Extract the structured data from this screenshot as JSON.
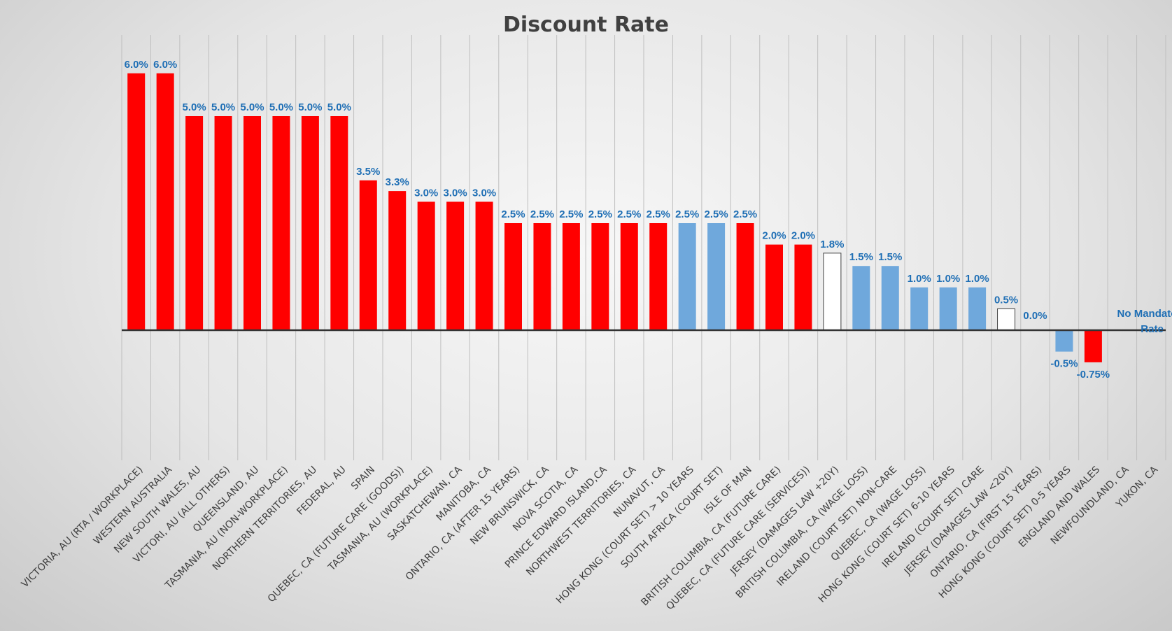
{
  "chart_data": {
    "type": "bar",
    "title": "Discount Rate",
    "xlabel": "",
    "ylabel": "",
    "ylim": [
      -2.75,
      6.5
    ],
    "grid": "vertical category lines",
    "legend": "none",
    "colors": {
      "red": "#ff0000",
      "blue": "#6fa8dc",
      "white": "#ffffff",
      "label": "#1f6fb5"
    },
    "note": "No Mandatory Rate",
    "bars": [
      {
        "category": "VICTORIA, AU (RTA / WORKPLACE)",
        "value": 6.0,
        "label": "6.0%",
        "color": "red"
      },
      {
        "category": "WESTERN AUSTRALIA",
        "value": 6.0,
        "label": "6.0%",
        "color": "red"
      },
      {
        "category": "NEW SOUTH WALES, AU",
        "value": 5.0,
        "label": "5.0%",
        "color": "red"
      },
      {
        "category": "VICTORI, AU (ALL OTHERS)",
        "value": 5.0,
        "label": "5.0%",
        "color": "red"
      },
      {
        "category": "QUEENSLAND, AU",
        "value": 5.0,
        "label": "5.0%",
        "color": "red"
      },
      {
        "category": "TASMANIA, AU (NON-WORKPLACE)",
        "value": 5.0,
        "label": "5.0%",
        "color": "red"
      },
      {
        "category": "NORTHERN TERRITORIES, AU",
        "value": 5.0,
        "label": "5.0%",
        "color": "red"
      },
      {
        "category": "FEDERAL, AU",
        "value": 5.0,
        "label": "5.0%",
        "color": "red"
      },
      {
        "category": "SPAIN",
        "value": 3.5,
        "label": "3.5%",
        "color": "red"
      },
      {
        "category": "QUEBEC, CA (FUTURE CARE (GOODS))",
        "value": 3.25,
        "label": "3.3%",
        "color": "red"
      },
      {
        "category": "TASMANIA, AU (WORKPLACE)",
        "value": 3.0,
        "label": "3.0%",
        "color": "red"
      },
      {
        "category": "SASKATCHEWAN, CA",
        "value": 3.0,
        "label": "3.0%",
        "color": "red"
      },
      {
        "category": "MANITOBA, CA",
        "value": 3.0,
        "label": "3.0%",
        "color": "red"
      },
      {
        "category": "ONTARIO, CA (AFTER 15 YEARS)",
        "value": 2.5,
        "label": "2.5%",
        "color": "red"
      },
      {
        "category": "NEW BRUNSWICK, CA",
        "value": 2.5,
        "label": "2.5%",
        "color": "red"
      },
      {
        "category": "NOVA SCOTIA, CA",
        "value": 2.5,
        "label": "2.5%",
        "color": "red"
      },
      {
        "category": "PRINCE EDWARD ISLAND,CA",
        "value": 2.5,
        "label": "2.5%",
        "color": "red"
      },
      {
        "category": "NORTHWEST TERRITORIES, CA",
        "value": 2.5,
        "label": "2.5%",
        "color": "red"
      },
      {
        "category": "NUNAVUT, CA",
        "value": 2.5,
        "label": "2.5%",
        "color": "red"
      },
      {
        "category": "HONG KONG (COURT SET) > 10 YEARS",
        "value": 2.5,
        "label": "2.5%",
        "color": "blue"
      },
      {
        "category": "SOUTH AFRICA (COURT SET)",
        "value": 2.5,
        "label": "2.5%",
        "color": "blue"
      },
      {
        "category": "ISLE OF MAN",
        "value": 2.5,
        "label": "2.5%",
        "color": "red"
      },
      {
        "category": "BRITISH COLUMBIA, CA (FUTURE CARE)",
        "value": 2.0,
        "label": "2.0%",
        "color": "red"
      },
      {
        "category": "QUEBEC, CA (FUTURE CARE (SERVICES))",
        "value": 2.0,
        "label": "2.0%",
        "color": "red"
      },
      {
        "category": "JERSEY (DAMAGES LAW +20Y)",
        "value": 1.8,
        "label": "1.8%",
        "color": "white"
      },
      {
        "category": "BRITISH COLUMBIA, CA (WAGE LOSS)",
        "value": 1.5,
        "label": "1.5%",
        "color": "blue"
      },
      {
        "category": "IRELAND (COURT SET) NON-CARE",
        "value": 1.5,
        "label": "1.5%",
        "color": "blue"
      },
      {
        "category": "QUEBEC, CA (WAGE LOSS)",
        "value": 1.0,
        "label": "1.0%",
        "color": "blue"
      },
      {
        "category": "HONG KONG (COURT SET) 6-10 YEARS",
        "value": 1.0,
        "label": "1.0%",
        "color": "blue"
      },
      {
        "category": "IRELAND (COURT SET) CARE",
        "value": 1.0,
        "label": "1.0%",
        "color": "blue"
      },
      {
        "category": "JERSEY (DAMAGES LAW <20Y)",
        "value": 0.5,
        "label": "0.5%",
        "color": "white"
      },
      {
        "category": "ONTARIO, CA (FIRST 15 YEARS)",
        "value": 0.0,
        "label": "0.0%",
        "color": "red"
      },
      {
        "category": "HONG KONG (COURT SET) 0-5 YEARS",
        "value": -0.5,
        "label": "-0.5%",
        "color": "blue"
      },
      {
        "category": "ENGLAND AND WALES",
        "value": -0.75,
        "label": "-0.75%",
        "color": "red"
      },
      {
        "category": "NEWFOUNDLAND, CA",
        "value": null,
        "label": "",
        "color": "none"
      },
      {
        "category": "YUKON, CA",
        "value": null,
        "label": "",
        "color": "none"
      }
    ]
  }
}
